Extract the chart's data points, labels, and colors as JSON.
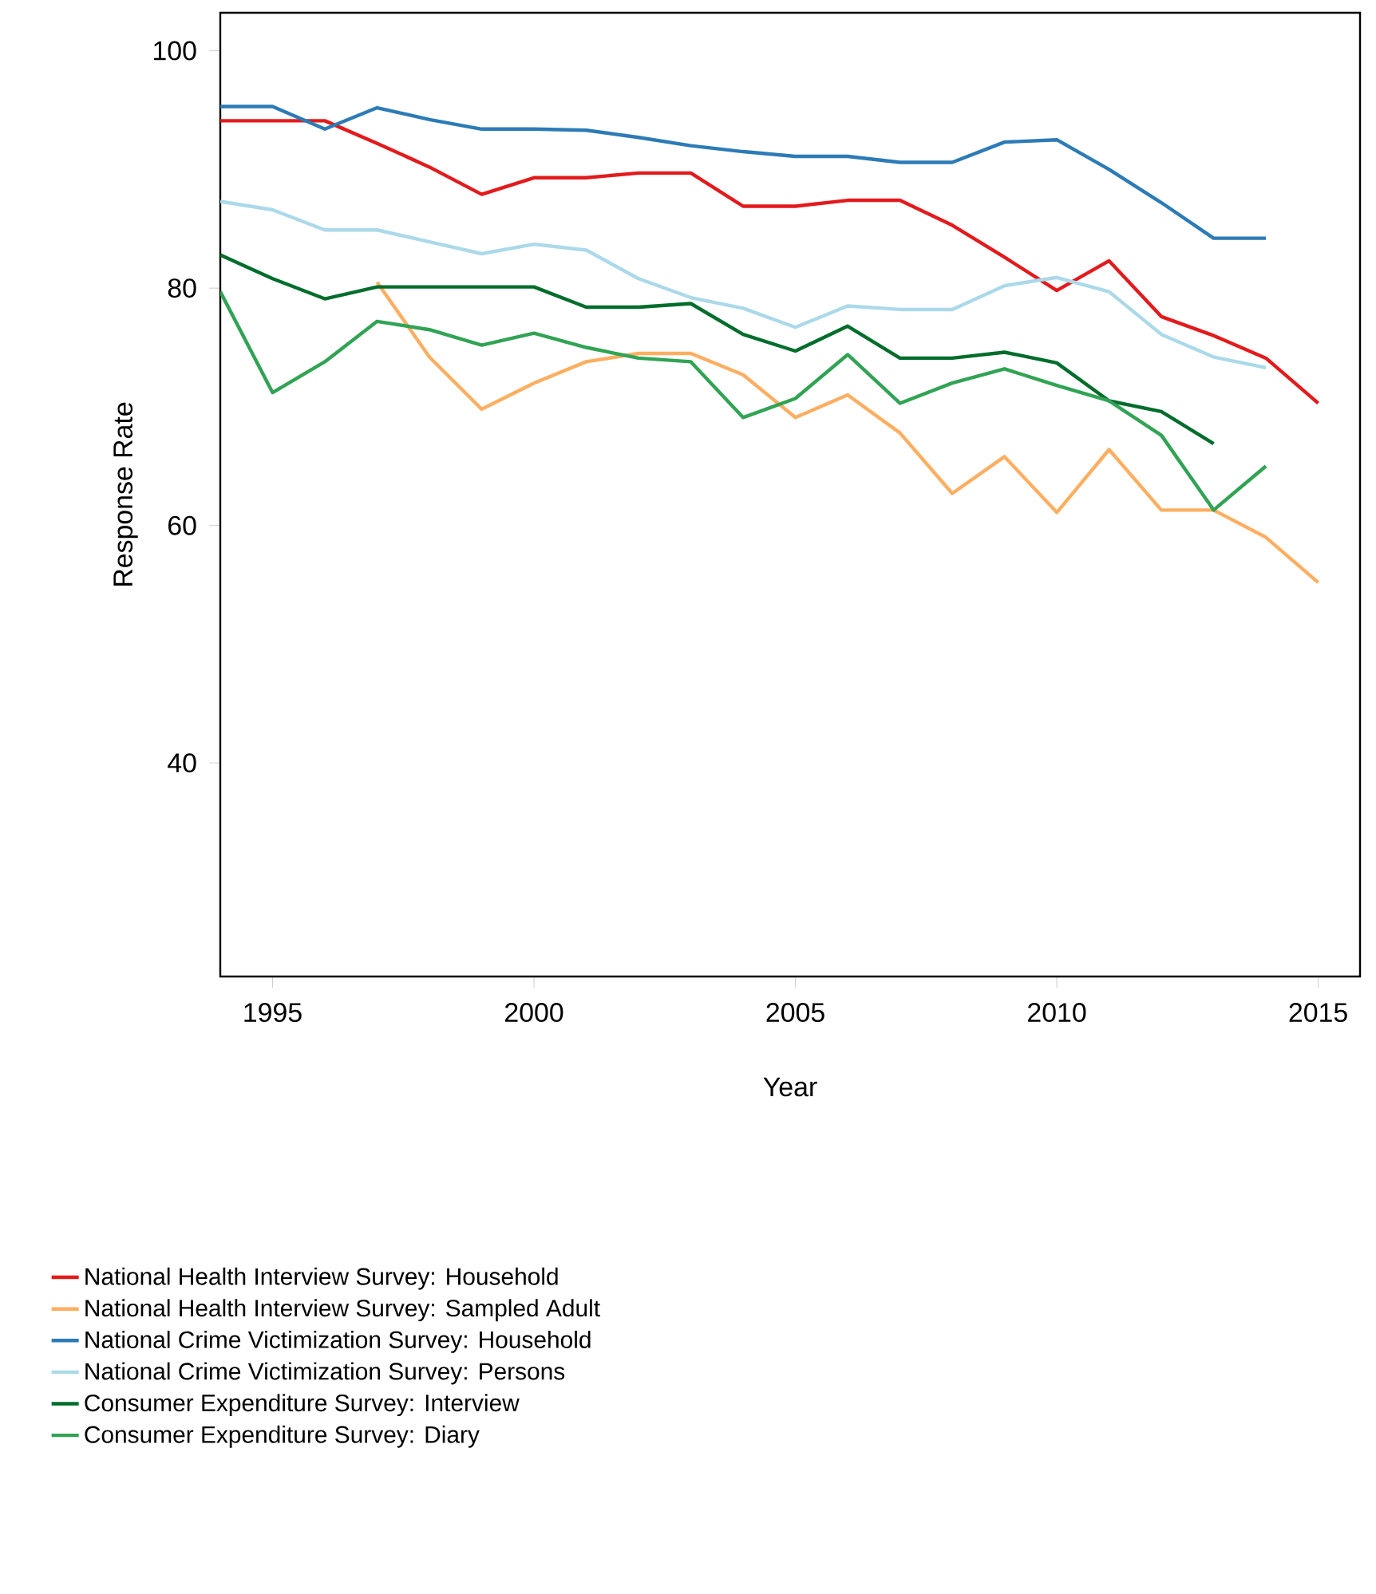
{
  "chart_data": {
    "type": "line",
    "xlabel": "Year",
    "ylabel": "Response Rate",
    "xlim": [
      1994,
      2015.8
    ],
    "ylim": [
      22,
      103.2
    ],
    "xticks": [
      1995,
      2000,
      2005,
      2010,
      2015
    ],
    "yticks": [
      40,
      60,
      80,
      100
    ],
    "grid": false,
    "legend": "bottom",
    "line_style": "solid",
    "series": [
      {
        "name": "National Health Interview Survey: Household",
        "color": "#e31a1c",
        "x": [
          1994,
          1995,
          1996,
          1997,
          1998,
          1999,
          2000,
          2001,
          2002,
          2003,
          2004,
          2005,
          2006,
          2007,
          2008,
          2009,
          2010,
          2011,
          2012,
          2013,
          2014,
          2015
        ],
        "values": [
          94.1,
          94.1,
          94.1,
          92.2,
          90.2,
          87.9,
          89.3,
          89.3,
          89.7,
          89.7,
          86.9,
          86.9,
          87.4,
          87.4,
          85.3,
          82.6,
          79.8,
          82.3,
          77.6,
          76.0,
          74.1,
          70.3
        ]
      },
      {
        "name": "National Health Interview Survey: Sampled Adult",
        "color": "#fdae61",
        "x": [
          1997,
          1998,
          1999,
          2000,
          2001,
          2002,
          2003,
          2004,
          2005,
          2006,
          2007,
          2008,
          2009,
          2010,
          2011,
          2012,
          2013,
          2014,
          2015
        ],
        "values": [
          80.5,
          74.2,
          69.8,
          72.0,
          73.8,
          74.5,
          74.5,
          72.7,
          69.1,
          71.0,
          67.8,
          62.7,
          65.8,
          61.1,
          66.4,
          61.3,
          61.3,
          59.0,
          55.2
        ]
      },
      {
        "name": "National Crime Victimization Survey: Household",
        "color": "#2c7bb6",
        "x": [
          1994,
          1995,
          1996,
          1997,
          1998,
          1999,
          2000,
          2001,
          2002,
          2003,
          2004,
          2005,
          2006,
          2007,
          2008,
          2009,
          2010,
          2011,
          2012,
          2013,
          2014
        ],
        "values": [
          95.3,
          95.3,
          93.4,
          95.2,
          94.2,
          93.4,
          93.4,
          93.3,
          92.7,
          92.0,
          91.5,
          91.1,
          91.1,
          90.6,
          90.6,
          92.3,
          92.5,
          90.0,
          87.2,
          84.2,
          84.2
        ]
      },
      {
        "name": "National Crime Victimization Survey: Persons",
        "color": "#abd9e9",
        "x": [
          1994,
          1995,
          1996,
          1997,
          1998,
          1999,
          2000,
          2001,
          2002,
          2003,
          2004,
          2005,
          2006,
          2007,
          2008,
          2009,
          2010,
          2011,
          2012,
          2013,
          2014
        ],
        "values": [
          87.3,
          86.6,
          84.9,
          84.9,
          83.9,
          82.9,
          83.7,
          83.2,
          80.8,
          79.2,
          78.3,
          76.7,
          78.5,
          78.2,
          78.2,
          80.2,
          80.9,
          79.7,
          76.1,
          74.2,
          73.3
        ]
      },
      {
        "name": "Consumer Expenditure Survey: Interview",
        "color": "#006d2c",
        "x": [
          1994,
          1995,
          1996,
          1997,
          1998,
          1999,
          2000,
          2001,
          2002,
          2003,
          2004,
          2005,
          2006,
          2007,
          2008,
          2009,
          2010,
          2011,
          2012,
          2013
        ],
        "values": [
          82.8,
          80.8,
          79.1,
          80.1,
          80.1,
          80.1,
          80.1,
          78.4,
          78.4,
          78.7,
          76.1,
          74.7,
          76.8,
          74.1,
          74.1,
          74.6,
          73.7,
          70.5,
          69.6,
          66.9
        ]
      },
      {
        "name": "Consumer Expenditure Survey: Diary",
        "color": "#31a354",
        "x": [
          1994,
          1995,
          1996,
          1997,
          1998,
          1999,
          2000,
          2001,
          2002,
          2003,
          2004,
          2005,
          2006,
          2007,
          2008,
          2009,
          2010,
          2011,
          2012,
          2013,
          2014
        ],
        "values": [
          79.7,
          71.2,
          73.8,
          77.2,
          76.5,
          75.2,
          76.2,
          75.0,
          74.1,
          73.8,
          69.1,
          70.7,
          74.4,
          70.3,
          72.0,
          73.2,
          71.8,
          70.5,
          67.6,
          61.3,
          65.0
        ]
      }
    ]
  }
}
